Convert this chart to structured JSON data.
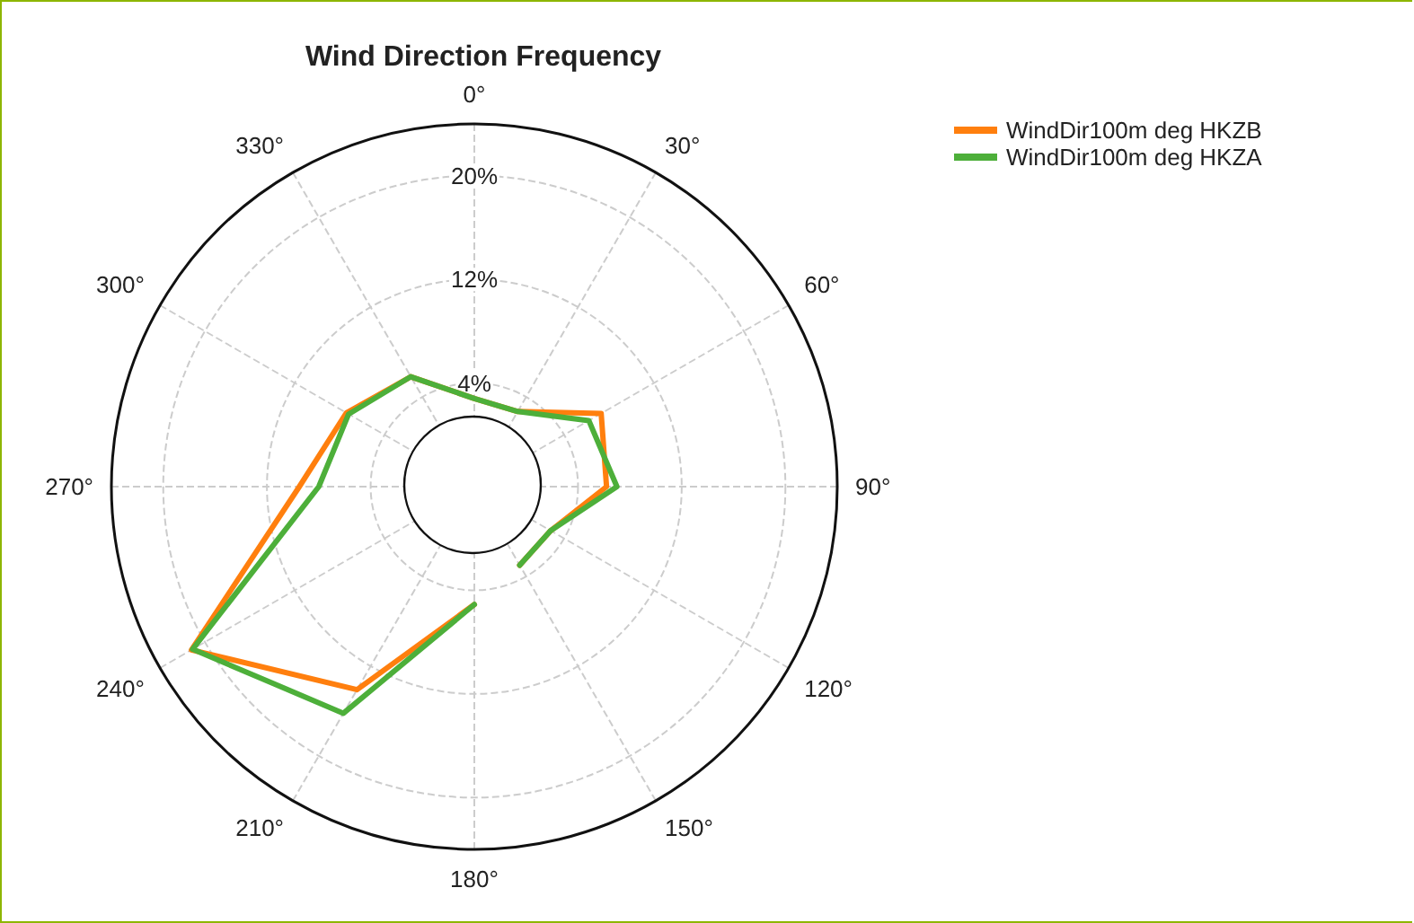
{
  "chart_data": {
    "type": "radar",
    "title": "Wind Direction Frequency",
    "categories": [
      "0°",
      "30°",
      "60°",
      "90°",
      "120°",
      "150°",
      "180°",
      "210°",
      "240°",
      "270°",
      "300°",
      "330°"
    ],
    "series": [
      {
        "name": "WindDir100m deg HKZB",
        "color": "#ff7f0e",
        "values": [
          2.8,
          2.7,
          7.3,
          6.2,
          2.8,
          3.0,
          5.1,
          14.1,
          21.2,
          9.5,
          7.4,
          5.8
        ]
      },
      {
        "name": "WindDir100m deg HKZA",
        "color": "#4daf3a",
        "values": [
          2.8,
          2.7,
          6.2,
          7.0,
          2.8,
          3.0,
          5.1,
          16.2,
          21.1,
          8.0,
          7.2,
          5.8
        ]
      }
    ],
    "ylim": [
      -4,
      24
    ],
    "yticks": [
      {
        "value": 4,
        "label": "4%"
      },
      {
        "value": 12,
        "label": "12%"
      },
      {
        "value": 20,
        "label": "20%"
      }
    ],
    "grid": true,
    "legend": "top right",
    "line_style": "solid",
    "marker": "none"
  }
}
